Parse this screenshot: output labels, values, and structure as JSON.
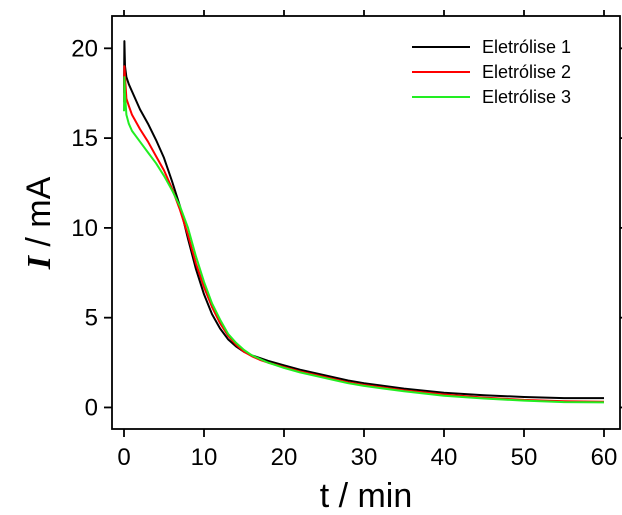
{
  "chart_data": {
    "type": "line",
    "title": "",
    "xlabel": "t / min",
    "ylabel_symbol": "I",
    "ylabel_unit": " / mA",
    "xlim": [
      -1.5,
      62
    ],
    "ylim": [
      -1.2,
      21.8
    ],
    "xticks": [
      0,
      10,
      20,
      30,
      40,
      50,
      60
    ],
    "yticks": [
      0,
      5,
      10,
      15,
      20
    ],
    "grid": false,
    "legend_position": "top-right",
    "series": [
      {
        "name": "Eletrólise 1",
        "color": "#000000",
        "x": [
          0,
          0.05,
          0.12,
          0.3,
          0.6,
          1,
          2,
          3,
          4,
          5,
          6,
          7,
          8,
          9,
          10,
          11,
          12,
          13,
          14,
          15,
          16,
          17,
          18,
          20,
          22,
          25,
          28,
          30,
          35,
          40,
          45,
          50,
          55,
          60
        ],
        "y": [
          17.5,
          20.4,
          19.0,
          18.4,
          18.0,
          17.6,
          16.6,
          15.8,
          14.9,
          13.9,
          12.6,
          11.2,
          9.4,
          7.7,
          6.3,
          5.2,
          4.4,
          3.8,
          3.4,
          3.1,
          2.9,
          2.75,
          2.6,
          2.35,
          2.1,
          1.8,
          1.5,
          1.35,
          1.05,
          0.82,
          0.68,
          0.58,
          0.52,
          0.52
        ]
      },
      {
        "name": "Eletrólise 2",
        "color": "#ff0000",
        "x": [
          0,
          0.05,
          0.12,
          0.3,
          0.6,
          1,
          2,
          3,
          4,
          5,
          6,
          7,
          8,
          9,
          10,
          11,
          12,
          13,
          14,
          15,
          16,
          17,
          18,
          20,
          22,
          25,
          28,
          30,
          35,
          40,
          45,
          50,
          55,
          60
        ],
        "y": [
          17.0,
          19.0,
          18.4,
          17.2,
          16.8,
          16.3,
          15.5,
          14.8,
          14.0,
          13.2,
          12.2,
          11.0,
          9.6,
          8.0,
          6.7,
          5.6,
          4.7,
          4.0,
          3.5,
          3.1,
          2.85,
          2.65,
          2.5,
          2.25,
          2.0,
          1.7,
          1.4,
          1.25,
          0.95,
          0.72,
          0.55,
          0.42,
          0.35,
          0.32
        ]
      },
      {
        "name": "Eletrólise 3",
        "color": "#22ee22",
        "x": [
          0,
          0.05,
          0.12,
          0.3,
          0.6,
          1,
          2,
          3,
          4,
          5,
          6,
          7,
          8,
          9,
          10,
          11,
          12,
          13,
          14,
          15,
          16,
          17,
          18,
          20,
          22,
          25,
          28,
          30,
          35,
          40,
          45,
          50,
          55,
          60
        ],
        "y": [
          16.5,
          18.4,
          17.4,
          16.3,
          15.8,
          15.4,
          14.8,
          14.2,
          13.6,
          12.9,
          12.1,
          11.2,
          10.0,
          8.4,
          7.0,
          5.8,
          4.9,
          4.1,
          3.6,
          3.2,
          2.9,
          2.7,
          2.5,
          2.2,
          1.95,
          1.65,
          1.35,
          1.2,
          0.9,
          0.65,
          0.5,
          0.38,
          0.3,
          0.28
        ]
      }
    ]
  }
}
